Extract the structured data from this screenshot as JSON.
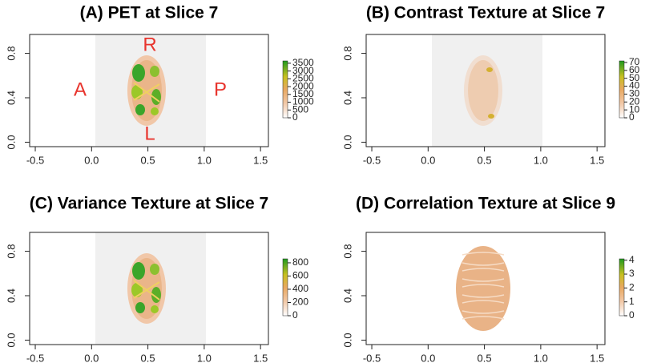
{
  "chart_data": [
    {
      "type": "image",
      "title": "(A) PET at Slice 7",
      "xlim": [
        -0.55,
        1.57
      ],
      "ylim": [
        -0.04,
        0.97
      ],
      "xticks": [
        -0.5,
        {
          "value": 0,
          "label": "0.0"
        },
        0.5,
        {
          "value": 1,
          "label": "1.0"
        },
        1.5
      ],
      "yticks": [
        {
          "value": 0,
          "label": "0.0"
        },
        0.4,
        0.8
      ],
      "clim": [
        0,
        3650
      ],
      "cticks": [
        0,
        500,
        1000,
        1500,
        2000,
        2500,
        3000,
        3500
      ],
      "annotations": [
        "R",
        "L",
        "A",
        "P"
      ]
    },
    {
      "type": "image",
      "title": "(B) Contrast  Texture at Slice 7",
      "xlim": [
        -0.55,
        1.57
      ],
      "ylim": [
        -0.04,
        0.97
      ],
      "xticks": [
        -0.5,
        {
          "value": 0,
          "label": "0.0"
        },
        0.5,
        {
          "value": 1,
          "label": "1.0"
        },
        1.5
      ],
      "yticks": [
        {
          "value": 0,
          "label": "0.0"
        },
        0.4,
        0.8
      ],
      "clim": [
        0,
        72
      ],
      "cticks": [
        0,
        10,
        20,
        30,
        40,
        50,
        60,
        70
      ]
    },
    {
      "type": "image",
      "title": "(C) Variance  Texture at Slice 7",
      "xlim": [
        -0.55,
        1.57
      ],
      "ylim": [
        -0.04,
        0.97
      ],
      "xticks": [
        -0.5,
        {
          "value": 0,
          "label": "0.0"
        },
        0.5,
        {
          "value": 1,
          "label": "1.0"
        },
        1.5
      ],
      "yticks": [
        {
          "value": 0,
          "label": "0.0"
        },
        0.4,
        0.8
      ],
      "clim": [
        0,
        860
      ],
      "cticks": [
        0,
        200,
        400,
        600,
        800
      ]
    },
    {
      "type": "image",
      "title": "(D) Correlation  Texture at Slice 9",
      "xlim": [
        -0.55,
        1.57
      ],
      "ylim": [
        -0.04,
        0.97
      ],
      "xticks": [
        -0.5,
        {
          "value": 0,
          "label": "0.0"
        },
        0.5,
        {
          "value": 1,
          "label": "1.0"
        },
        1.5
      ],
      "yticks": [
        {
          "value": 0,
          "label": "0.0"
        },
        0.4,
        0.8
      ],
      "clim": [
        0,
        4.1
      ],
      "cticks": [
        0,
        1,
        2,
        3,
        4
      ]
    }
  ]
}
